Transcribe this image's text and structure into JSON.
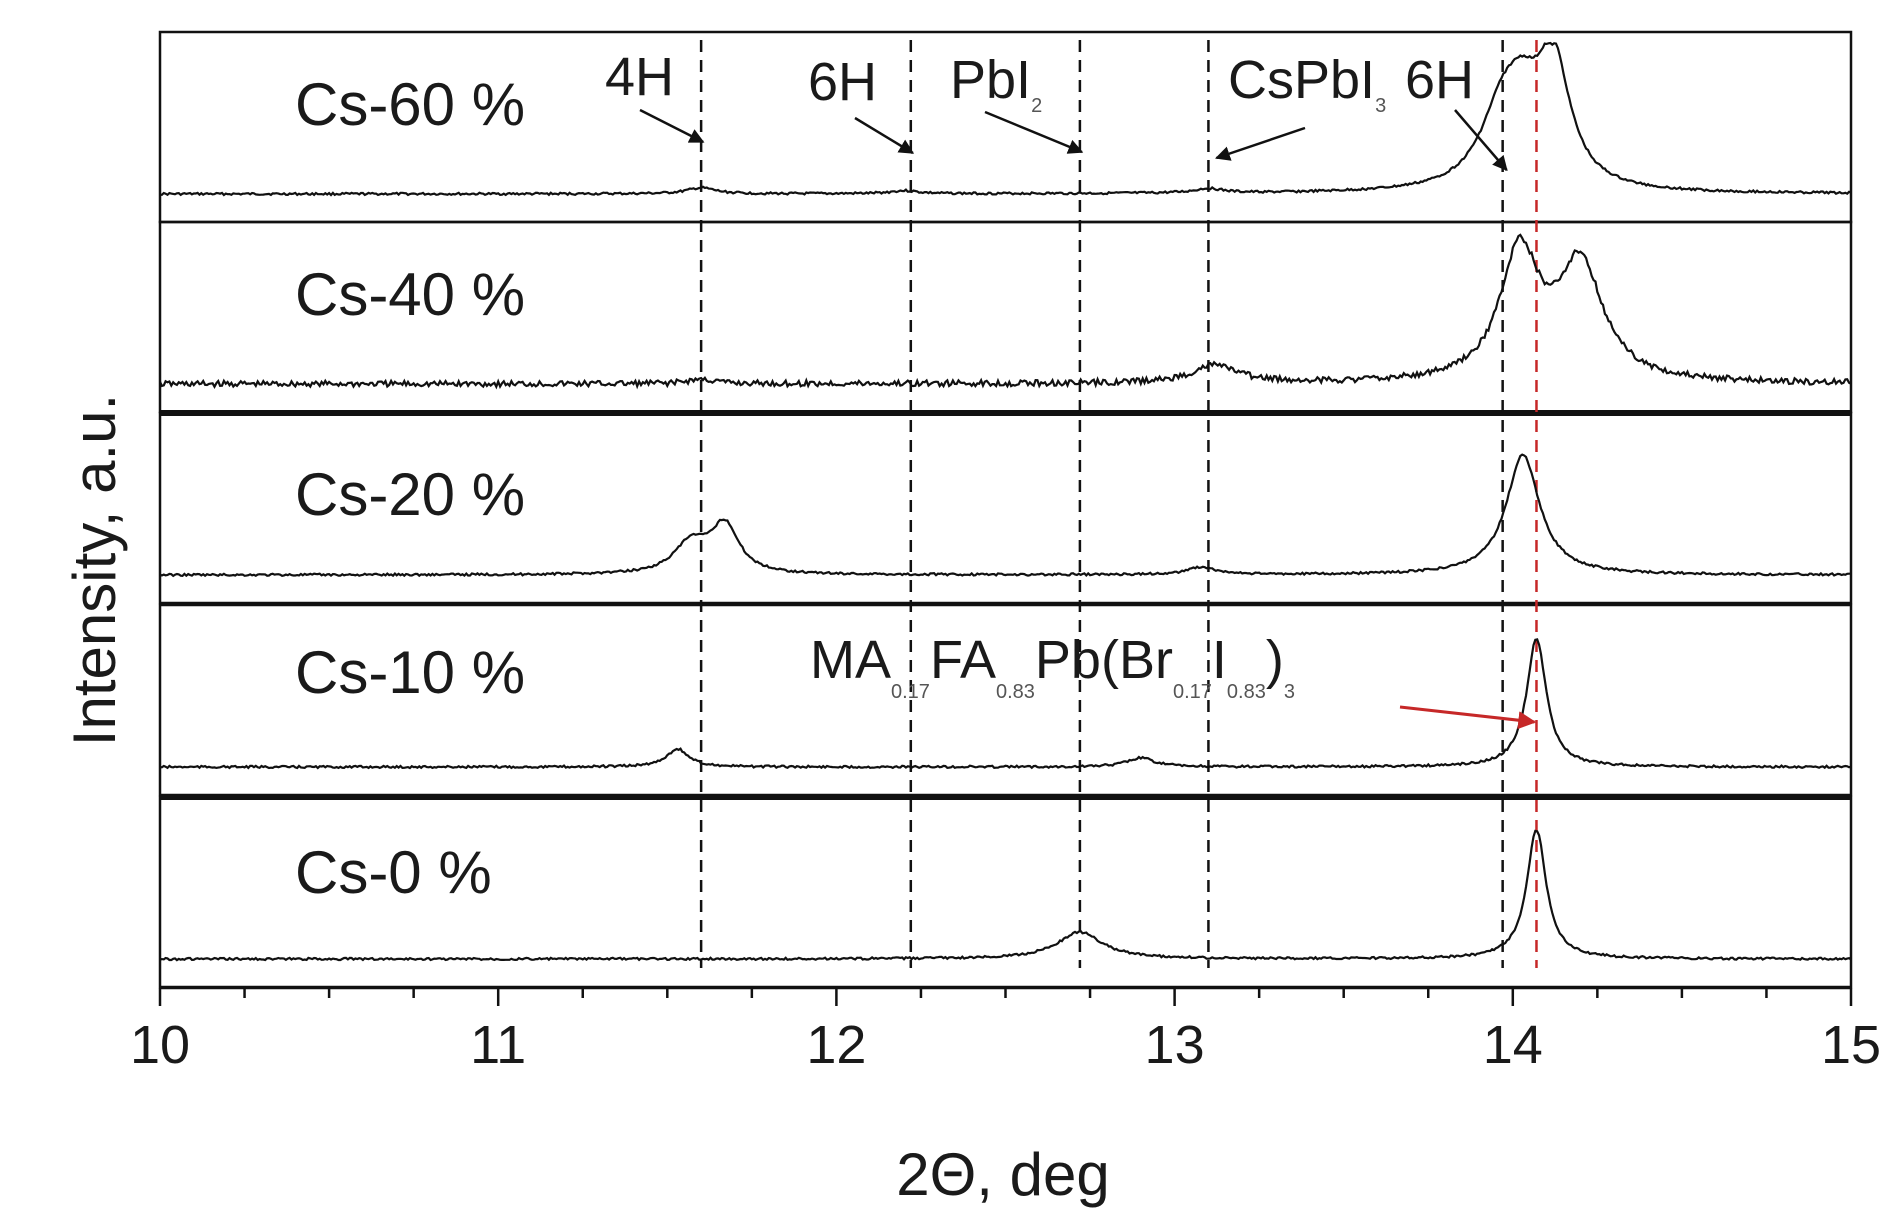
{
  "chart_data": {
    "type": "line",
    "title": "",
    "xlabel": "2Θ, deg",
    "ylabel": "Intensity, a.u.",
    "xlim": [
      10,
      15
    ],
    "xticks": [
      10,
      11,
      12,
      13,
      14,
      15
    ],
    "xtick_labels": [
      "10",
      "11",
      "12",
      "13",
      "14",
      "15"
    ],
    "grid": false,
    "stacked_panels": true,
    "series": [
      {
        "name": "Cs-60 %",
        "label": "Cs-60 %",
        "peaks": [
          {
            "x": 11.6,
            "height": 0.04,
            "width": 0.05
          },
          {
            "x": 12.2,
            "height": 0.02,
            "width": 0.05
          },
          {
            "x": 13.1,
            "height": 0.03,
            "width": 0.05
          },
          {
            "x": 13.97,
            "height": 0.5,
            "width": 0.08
          },
          {
            "x": 14.03,
            "height": 0.35,
            "width": 0.06
          },
          {
            "x": 14.12,
            "height": 0.82,
            "width": 0.06
          }
        ]
      },
      {
        "name": "Cs-40 %",
        "label": "Cs-40 %",
        "peaks": [
          {
            "x": 11.6,
            "height": 0.03,
            "width": 0.05
          },
          {
            "x": 13.12,
            "height": 0.12,
            "width": 0.08
          },
          {
            "x": 14.02,
            "height": 0.85,
            "width": 0.07
          },
          {
            "x": 14.2,
            "height": 0.77,
            "width": 0.08
          }
        ]
      },
      {
        "name": "Cs-20 %",
        "label": "Cs-20 %",
        "peaks": [
          {
            "x": 11.57,
            "height": 0.2,
            "width": 0.06
          },
          {
            "x": 11.67,
            "height": 0.32,
            "width": 0.05
          },
          {
            "x": 13.08,
            "height": 0.05,
            "width": 0.05
          },
          {
            "x": 14.03,
            "height": 0.8,
            "width": 0.06
          }
        ]
      },
      {
        "name": "Cs-10 %",
        "label": "Cs-10 %",
        "peaks": [
          {
            "x": 11.53,
            "height": 0.12,
            "width": 0.04
          },
          {
            "x": 12.9,
            "height": 0.06,
            "width": 0.05
          },
          {
            "x": 14.07,
            "height": 0.86,
            "width": 0.035
          }
        ]
      },
      {
        "name": "Cs-0 %",
        "label": "Cs-0 %",
        "peaks": [
          {
            "x": 12.72,
            "height": 0.18,
            "width": 0.08
          },
          {
            "x": 14.07,
            "height": 0.86,
            "width": 0.035
          }
        ]
      }
    ],
    "reference_lines": [
      {
        "label": "4H",
        "x": 11.6,
        "color": "#111111"
      },
      {
        "label": "6H",
        "x": 12.22,
        "color": "#111111"
      },
      {
        "label": "PbI2",
        "x": 12.72,
        "color": "#111111"
      },
      {
        "label": "CsPbI3",
        "x": 13.1,
        "color": "#111111"
      },
      {
        "label": "6H",
        "x": 13.97,
        "color": "#111111"
      },
      {
        "label": "MA0.17FA0.83Pb(Br0.17I0.83)3",
        "x": 14.07,
        "color": "#c62828"
      }
    ],
    "annotations": {
      "label_4h": "4H",
      "label_6h": "6H",
      "label_pbi": "PbI",
      "label_pbi_sub": "2",
      "label_cspbi": "CsPbI",
      "label_cspbi_sub": "3",
      "label_6h_b": "6H",
      "ma": "MA",
      "ma_sub": "0.17",
      "fa": "FA",
      "fa_sub": "0.83",
      "pb": "Pb(Br",
      "br_sub": "0.17",
      "iodine": "I",
      "i_sub": "0.83",
      "close_paren": ")",
      "outer_sub": "3"
    },
    "colors": {
      "trace": "#111111",
      "reference": "#111111",
      "highlight": "#c62828"
    }
  }
}
